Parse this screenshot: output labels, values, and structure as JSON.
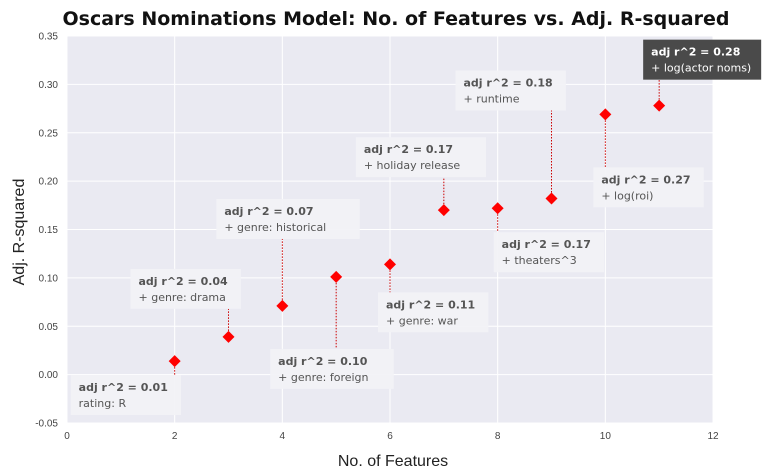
{
  "chart_data": {
    "type": "scatter",
    "title": "Oscars Nominations Model: No. of Features vs. Adj. R-squared",
    "xlabel": "No. of Features",
    "ylabel": "Adj. R-squared",
    "xlim": [
      0,
      12
    ],
    "ylim": [
      -0.05,
      0.35
    ],
    "x_ticks": [
      "0",
      "2",
      "4",
      "6",
      "8",
      "10",
      "12"
    ],
    "y_ticks": [
      "-0.05",
      "0.00",
      "0.05",
      "0.10",
      "0.15",
      "0.20",
      "0.25",
      "0.30",
      "0.35"
    ],
    "grid": true,
    "marker_color": "#ff0000",
    "plot_background": "#eaeaf2",
    "points": [
      {
        "x": 2,
        "y": 0.014
      },
      {
        "x": 3,
        "y": 0.039
      },
      {
        "x": 4,
        "y": 0.071
      },
      {
        "x": 5,
        "y": 0.101
      },
      {
        "x": 6,
        "y": 0.114
      },
      {
        "x": 7,
        "y": 0.17
      },
      {
        "x": 8,
        "y": 0.172
      },
      {
        "x": 9,
        "y": 0.182
      },
      {
        "x": 10,
        "y": 0.269
      },
      {
        "x": 11,
        "y": 0.278
      }
    ],
    "annotations": [
      {
        "x": 2,
        "head": "adj r^2 = 0.01",
        "sub": "rating: R",
        "side": "below",
        "highlight": false
      },
      {
        "x": 3,
        "head": "adj r^2 = 0.04",
        "sub": "+ genre: drama",
        "side": "above",
        "highlight": false
      },
      {
        "x": 4,
        "head": "adj r^2 = 0.07",
        "sub": "+ genre: historical",
        "side": "above",
        "highlight": false
      },
      {
        "x": 5,
        "head": "adj r^2 = 0.10",
        "sub": "+ genre: foreign",
        "side": "below",
        "highlight": false
      },
      {
        "x": 6,
        "head": "adj r^2 = 0.11",
        "sub": "+ genre: war",
        "side": "below",
        "highlight": false
      },
      {
        "x": 7,
        "head": "adj r^2 = 0.17",
        "sub": "+ holiday release",
        "side": "above",
        "highlight": false
      },
      {
        "x": 8,
        "head": "adj r^2 = 0.17",
        "sub": "+ theaters^3",
        "side": "below",
        "highlight": false
      },
      {
        "x": 9,
        "head": "adj r^2 = 0.18",
        "sub": "+ runtime",
        "side": "above",
        "highlight": false
      },
      {
        "x": 10,
        "head": "adj r^2 = 0.27",
        "sub": "+ log(roi)",
        "side": "below",
        "highlight": false
      },
      {
        "x": 11,
        "head": "adj r^2 = 0.28",
        "sub": "+ log(actor noms)",
        "side": "above",
        "highlight": true
      }
    ]
  }
}
